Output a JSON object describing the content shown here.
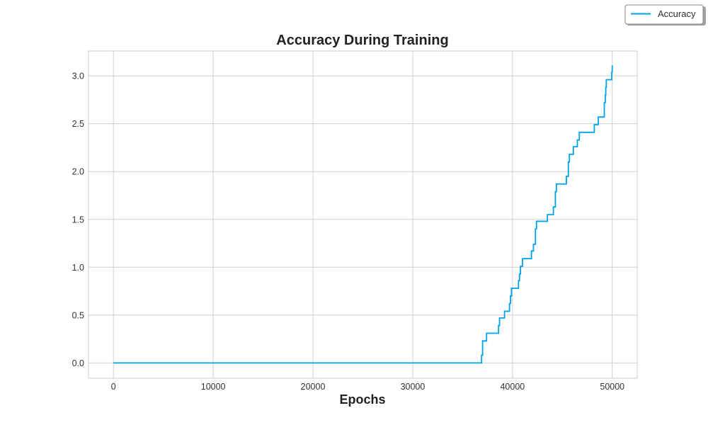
{
  "chart_data": {
    "type": "line",
    "title": "Accuracy During Training",
    "xlabel": "Epochs",
    "ylabel": "",
    "xlim": [
      -2500,
      52500
    ],
    "ylim": [
      -0.16,
      3.26
    ],
    "xticks": [
      0,
      10000,
      20000,
      30000,
      40000,
      50000
    ],
    "xtick_labels": [
      "0",
      "10000",
      "20000",
      "30000",
      "40000",
      "50000"
    ],
    "yticks": [
      0.0,
      0.5,
      1.0,
      1.5,
      2.0,
      2.5,
      3.0
    ],
    "ytick_labels": [
      "0.0",
      "0.5",
      "1.0",
      "1.5",
      "2.0",
      "2.5",
      "3.0"
    ],
    "grid": true,
    "legend_position": "outside top-right",
    "colors": {
      "line": "#00a2e8",
      "grid": "#cfcfcf",
      "frame": "#cccccc"
    },
    "series": [
      {
        "name": "Accuracy",
        "step": "post",
        "x": [
          0,
          36900,
          37000,
          37100,
          37400,
          38600,
          38700,
          38800,
          39200,
          39700,
          39800,
          39900,
          40600,
          40700,
          40800,
          41000,
          41900,
          42100,
          42300,
          42400,
          42500,
          43500,
          44100,
          44300,
          44400,
          45400,
          45600,
          45700,
          45800,
          46100,
          46500,
          46700,
          47800,
          48200,
          48600,
          49200,
          49300,
          49350,
          49400,
          49900,
          49950,
          50000
        ],
        "y": [
          0.0,
          0.08,
          0.23,
          0.23,
          0.31,
          0.39,
          0.47,
          0.47,
          0.54,
          0.62,
          0.7,
          0.78,
          0.86,
          0.93,
          1.01,
          1.09,
          1.17,
          1.24,
          1.4,
          1.48,
          1.48,
          1.55,
          1.63,
          1.79,
          1.87,
          1.95,
          2.1,
          2.18,
          2.18,
          2.26,
          2.33,
          2.41,
          2.41,
          2.49,
          2.57,
          2.72,
          2.8,
          2.88,
          2.96,
          2.96,
          3.04,
          3.11
        ]
      }
    ]
  }
}
